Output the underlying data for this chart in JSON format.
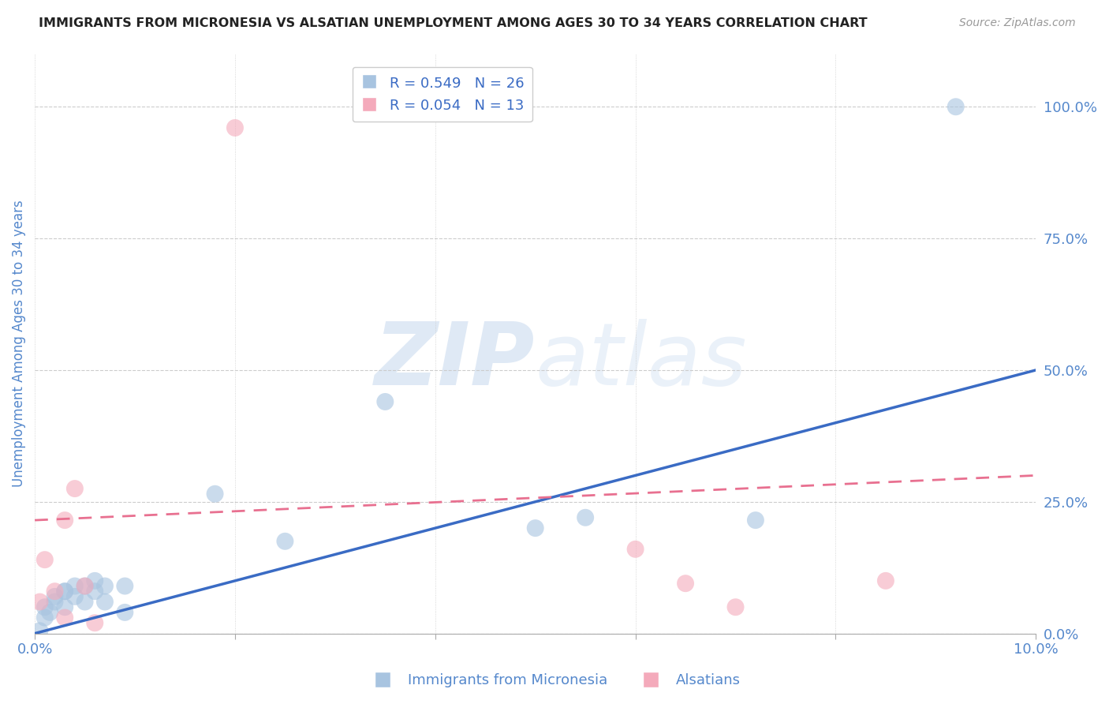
{
  "title": "IMMIGRANTS FROM MICRONESIA VS ALSATIAN UNEMPLOYMENT AMONG AGES 30 TO 34 YEARS CORRELATION CHART",
  "source": "Source: ZipAtlas.com",
  "ylabel": "Unemployment Among Ages 30 to 34 years",
  "blue_label": "Immigrants from Micronesia",
  "pink_label": "Alsatians",
  "blue_R": 0.549,
  "blue_N": 26,
  "pink_R": 0.054,
  "pink_N": 13,
  "blue_color": "#A8C4E0",
  "pink_color": "#F4AABB",
  "blue_trend_color": "#3A6BC4",
  "pink_trend_color": "#E87090",
  "title_color": "#222222",
  "axis_color": "#5588CC",
  "watermark_color": "#C5D8EE",
  "xlim": [
    0.0,
    0.1
  ],
  "ylim": [
    0.0,
    1.1
  ],
  "right_yticks": [
    0.0,
    0.25,
    0.5,
    0.75,
    1.0
  ],
  "right_yticklabels": [
    "0.0%",
    "25.0%",
    "50.0%",
    "75.0%",
    "100.0%"
  ],
  "xticks": [
    0.0,
    0.02,
    0.04,
    0.06,
    0.08,
    0.1
  ],
  "xticklabels": [
    "0.0%",
    "",
    "",
    "",
    "",
    "10.0%"
  ],
  "blue_x": [
    0.0005,
    0.001,
    0.001,
    0.0015,
    0.002,
    0.002,
    0.003,
    0.003,
    0.003,
    0.004,
    0.004,
    0.005,
    0.005,
    0.006,
    0.006,
    0.007,
    0.007,
    0.009,
    0.009,
    0.018,
    0.025,
    0.035,
    0.05,
    0.055,
    0.072,
    0.092
  ],
  "blue_y": [
    0.005,
    0.03,
    0.05,
    0.04,
    0.06,
    0.07,
    0.05,
    0.08,
    0.08,
    0.07,
    0.09,
    0.06,
    0.09,
    0.08,
    0.1,
    0.06,
    0.09,
    0.04,
    0.09,
    0.265,
    0.175,
    0.44,
    0.2,
    0.22,
    0.215,
    1.0
  ],
  "pink_x": [
    0.0005,
    0.001,
    0.002,
    0.003,
    0.003,
    0.004,
    0.005,
    0.006,
    0.02,
    0.06,
    0.065,
    0.07,
    0.085
  ],
  "pink_y": [
    0.06,
    0.14,
    0.08,
    0.03,
    0.215,
    0.275,
    0.09,
    0.02,
    0.96,
    0.16,
    0.095,
    0.05,
    0.1
  ],
  "blue_trend_x": [
    0.0,
    0.1
  ],
  "blue_trend_y": [
    0.0,
    0.5
  ],
  "pink_trend_x": [
    0.0,
    0.1
  ],
  "pink_trend_y": [
    0.215,
    0.3
  ],
  "marker_size": 250,
  "blue_alpha": 0.6,
  "pink_alpha": 0.6
}
